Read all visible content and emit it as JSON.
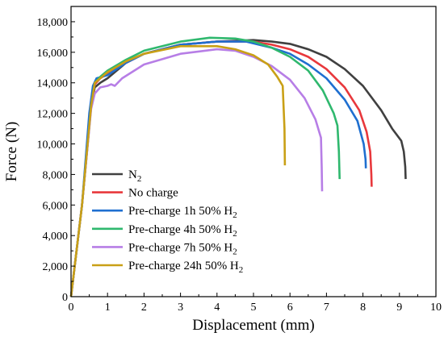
{
  "chart_data": {
    "type": "line",
    "xlabel": "Displacement (mm)",
    "ylabel": "Force (N)",
    "xlim": [
      0,
      10
    ],
    "ylim": [
      0,
      19000
    ],
    "x_ticks": [
      "0",
      "1",
      "2",
      "3",
      "4",
      "5",
      "6",
      "7",
      "8",
      "9",
      "10"
    ],
    "y_ticks": [
      "0",
      "2,000",
      "4,000",
      "6,000",
      "8,000",
      "10,000",
      "12,000",
      "14,000",
      "16,000",
      "18,000"
    ],
    "grid": false,
    "legend_position": "bottom-left",
    "series": [
      {
        "name": "N",
        "name_sub": "2",
        "color": "#404040",
        "points": [
          [
            0,
            0
          ],
          [
            0.3,
            6000
          ],
          [
            0.55,
            12500
          ],
          [
            0.65,
            13700
          ],
          [
            0.8,
            14000
          ],
          [
            1,
            14300
          ],
          [
            1.5,
            15300
          ],
          [
            2,
            15900
          ],
          [
            3,
            16500
          ],
          [
            4,
            16700
          ],
          [
            5,
            16800
          ],
          [
            5.5,
            16700
          ],
          [
            6,
            16550
          ],
          [
            6.5,
            16200
          ],
          [
            7,
            15700
          ],
          [
            7.5,
            14900
          ],
          [
            8,
            13800
          ],
          [
            8.5,
            12200
          ],
          [
            8.8,
            11000
          ],
          [
            9.05,
            10200
          ],
          [
            9.12,
            9500
          ],
          [
            9.16,
            8500
          ],
          [
            9.17,
            7700
          ]
        ]
      },
      {
        "name": "No charge",
        "name_sub": "",
        "color": "#e8383c",
        "points": [
          [
            0,
            0
          ],
          [
            0.3,
            6000
          ],
          [
            0.55,
            12500
          ],
          [
            0.65,
            13900
          ],
          [
            0.8,
            14300
          ],
          [
            1,
            14600
          ],
          [
            1.5,
            15300
          ],
          [
            2,
            15900
          ],
          [
            3,
            16500
          ],
          [
            4,
            16700
          ],
          [
            5,
            16700
          ],
          [
            5.5,
            16500
          ],
          [
            6,
            16200
          ],
          [
            6.5,
            15700
          ],
          [
            7,
            14900
          ],
          [
            7.5,
            13700
          ],
          [
            7.9,
            12200
          ],
          [
            8.1,
            10800
          ],
          [
            8.2,
            9500
          ],
          [
            8.23,
            8000
          ],
          [
            8.24,
            7200
          ]
        ]
      },
      {
        "name": "Pre-charge 1h 50% H",
        "name_sub": "2",
        "color": "#1f6fd0",
        "points": [
          [
            0,
            0
          ],
          [
            0.3,
            6000
          ],
          [
            0.5,
            12000
          ],
          [
            0.6,
            13800
          ],
          [
            0.7,
            14300
          ],
          [
            1,
            14500
          ],
          [
            1.5,
            15300
          ],
          [
            2,
            15900
          ],
          [
            3,
            16500
          ],
          [
            4,
            16700
          ],
          [
            4.8,
            16700
          ],
          [
            5.5,
            16300
          ],
          [
            6,
            15900
          ],
          [
            6.5,
            15200
          ],
          [
            7,
            14300
          ],
          [
            7.5,
            12900
          ],
          [
            7.85,
            11500
          ],
          [
            8.02,
            10000
          ],
          [
            8.07,
            9000
          ],
          [
            8.08,
            8400
          ]
        ]
      },
      {
        "name": "Pre-charge 4h 50% H",
        "name_sub": "2",
        "color": "#2fb86e",
        "points": [
          [
            0,
            0
          ],
          [
            0.3,
            6000
          ],
          [
            0.55,
            12500
          ],
          [
            0.65,
            14000
          ],
          [
            0.8,
            14400
          ],
          [
            1,
            14800
          ],
          [
            1.5,
            15500
          ],
          [
            2,
            16100
          ],
          [
            3,
            16700
          ],
          [
            3.8,
            16950
          ],
          [
            4.5,
            16900
          ],
          [
            5,
            16700
          ],
          [
            5.5,
            16300
          ],
          [
            6,
            15700
          ],
          [
            6.5,
            14800
          ],
          [
            6.9,
            13500
          ],
          [
            7.2,
            12000
          ],
          [
            7.3,
            11200
          ],
          [
            7.34,
            9500
          ],
          [
            7.36,
            7700
          ]
        ]
      },
      {
        "name": "Pre-charge 7h 50% H",
        "name_sub": "2",
        "color": "#b77ee6",
        "points": [
          [
            0,
            0
          ],
          [
            0.3,
            6000
          ],
          [
            0.55,
            12300
          ],
          [
            0.65,
            13300
          ],
          [
            0.8,
            13700
          ],
          [
            1,
            13800
          ],
          [
            1.1,
            13900
          ],
          [
            1.2,
            13800
          ],
          [
            1.4,
            14300
          ],
          [
            2,
            15200
          ],
          [
            3,
            15900
          ],
          [
            4,
            16200
          ],
          [
            4.5,
            16100
          ],
          [
            5,
            15700
          ],
          [
            5.5,
            15100
          ],
          [
            6,
            14200
          ],
          [
            6.4,
            13000
          ],
          [
            6.7,
            11600
          ],
          [
            6.85,
            10400
          ],
          [
            6.87,
            8500
          ],
          [
            6.88,
            6900
          ]
        ]
      },
      {
        "name": "Pre-charge 24h 50% H",
        "name_sub": "2",
        "color": "#c9a016",
        "points": [
          [
            0,
            0
          ],
          [
            0.3,
            6000
          ],
          [
            0.55,
            12500
          ],
          [
            0.65,
            14000
          ],
          [
            0.8,
            14300
          ],
          [
            1,
            14700
          ],
          [
            1.5,
            15400
          ],
          [
            2,
            15900
          ],
          [
            3,
            16400
          ],
          [
            4,
            16400
          ],
          [
            4.5,
            16200
          ],
          [
            5,
            15800
          ],
          [
            5.4,
            15200
          ],
          [
            5.65,
            14400
          ],
          [
            5.8,
            13800
          ],
          [
            5.85,
            11000
          ],
          [
            5.86,
            8600
          ]
        ]
      }
    ]
  }
}
